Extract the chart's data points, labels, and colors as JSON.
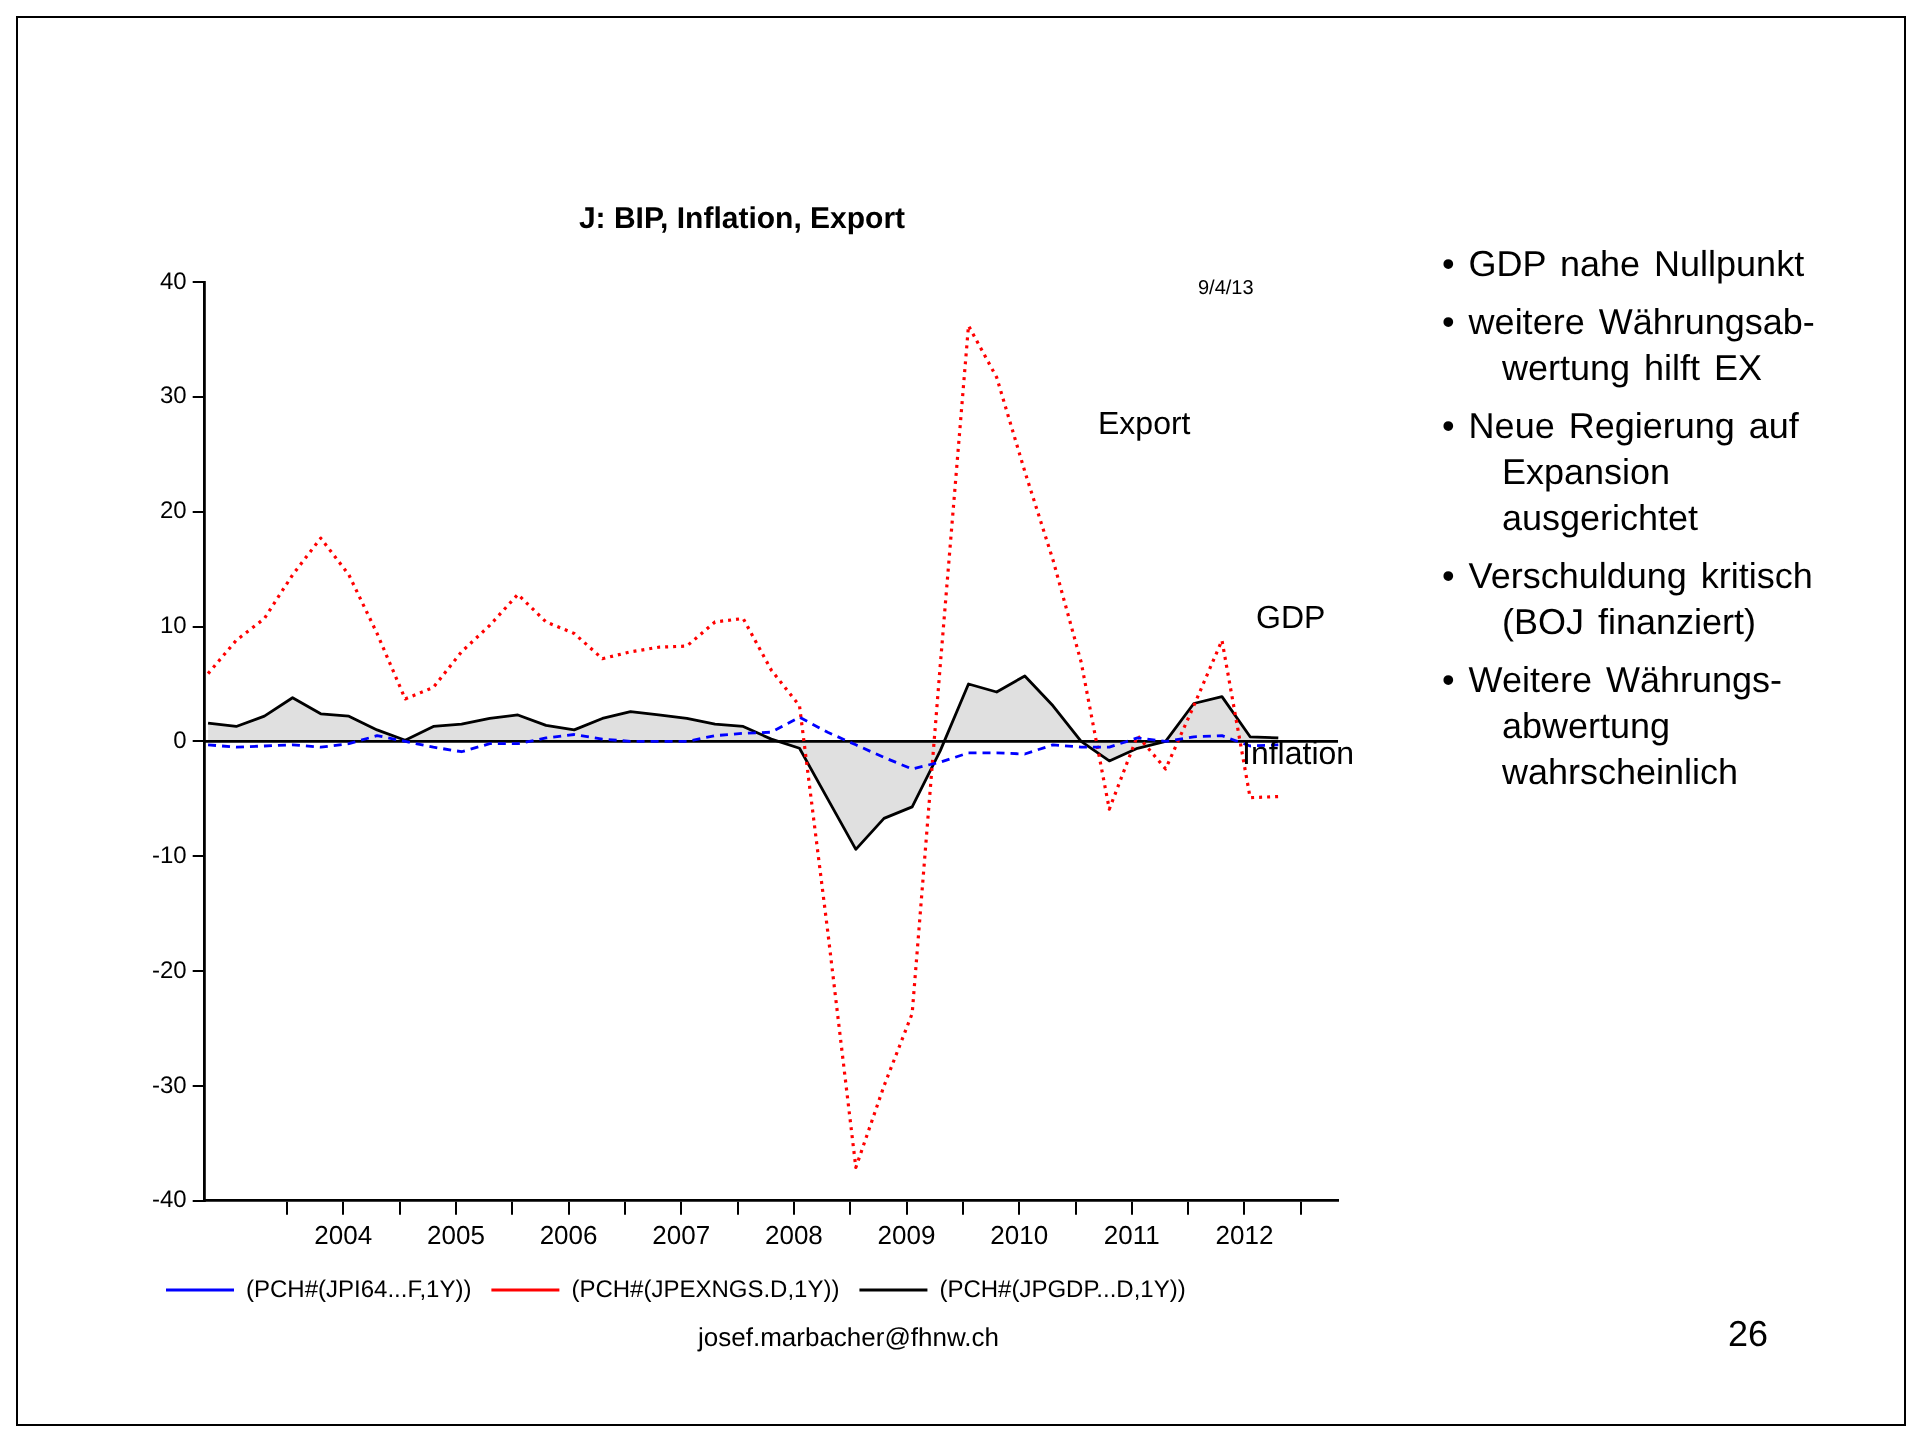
{
  "chart_data": {
    "type": "line",
    "title": "J: BIP, Inflation, Export",
    "x": [
      2003.3,
      2003.55,
      2003.8,
      2004.05,
      2004.3,
      2004.55,
      2004.8,
      2005.05,
      2005.3,
      2005.55,
      2005.8,
      2006.05,
      2006.3,
      2006.55,
      2006.8,
      2007.05,
      2007.3,
      2007.55,
      2007.8,
      2008.05,
      2008.3,
      2008.55,
      2008.8,
      2009.05,
      2009.3,
      2009.55,
      2009.8,
      2010.05,
      2010.3,
      2010.55,
      2010.8,
      2011.05,
      2011.3,
      2011.55,
      2011.8,
      2012.05,
      2012.3,
      2012.55,
      2012.8
    ],
    "series": [
      {
        "name": "(PCH#(JPGDP...D,1Y))",
        "type": "area",
        "color": "#000000",
        "line_style": "solid",
        "values": [
          1.6,
          1.3,
          2.2,
          3.8,
          2.4,
          2.2,
          1.0,
          0.1,
          1.3,
          1.5,
          2.0,
          2.3,
          1.4,
          1.0,
          2.0,
          2.6,
          2.3,
          2.0,
          1.5,
          1.3,
          0.2,
          -0.6,
          -5.0,
          -9.4,
          -6.7,
          -5.7,
          -0.8,
          5.0,
          4.3,
          5.7,
          3.1,
          0.0,
          -1.7,
          -0.6,
          0.0,
          3.3,
          3.9,
          0.4,
          0.3
        ]
      },
      {
        "name": "(PCH#(JPI64...F,1Y))",
        "color": "#0000ff",
        "line_style": "dashed",
        "values": [
          -0.3,
          -0.5,
          -0.4,
          -0.3,
          -0.5,
          -0.2,
          0.5,
          0.0,
          -0.5,
          -0.9,
          -0.2,
          -0.2,
          0.3,
          0.6,
          0.2,
          0.0,
          0.0,
          0.0,
          0.5,
          0.7,
          0.8,
          2.1,
          0.8,
          -0.3,
          -1.4,
          -2.4,
          -1.8,
          -1.0,
          -1.0,
          -1.1,
          -0.3,
          -0.5,
          -0.5,
          0.3,
          0.0,
          0.4,
          0.5,
          -0.4,
          -0.3
        ]
      },
      {
        "name": "(PCH#(JPEXNGS.D,1Y))",
        "color": "#ff0000",
        "line_style": "dotted",
        "values": [
          5.9,
          8.8,
          10.7,
          14.5,
          17.7,
          14.5,
          9.4,
          3.7,
          4.7,
          7.8,
          10.1,
          12.8,
          10.4,
          9.4,
          7.2,
          7.8,
          8.2,
          8.3,
          10.4,
          10.7,
          6.2,
          3.1,
          -16.5,
          -37.1,
          -30.0,
          -23.7,
          6.7,
          36.2,
          31.7,
          23.5,
          15.8,
          6.9,
          -5.9,
          0.5,
          -2.4,
          3.1,
          8.8,
          -4.9,
          -4.8
        ]
      }
    ],
    "xlim": [
      2003.27,
      2013.33
    ],
    "xticks": [
      {
        "value": 2004,
        "label": null
      },
      {
        "value": 2004.5,
        "label": "2004"
      },
      {
        "value": 2005,
        "label": null
      },
      {
        "value": 2005.5,
        "label": "2005"
      },
      {
        "value": 2006,
        "label": null
      },
      {
        "value": 2006.5,
        "label": "2006"
      },
      {
        "value": 2007,
        "label": null
      },
      {
        "value": 2007.5,
        "label": "2007"
      },
      {
        "value": 2008,
        "label": null
      },
      {
        "value": 2008.5,
        "label": "2008"
      },
      {
        "value": 2009,
        "label": null
      },
      {
        "value": 2009.5,
        "label": "2009"
      },
      {
        "value": 2010,
        "label": null
      },
      {
        "value": 2010.5,
        "label": "2010"
      },
      {
        "value": 2011,
        "label": null
      },
      {
        "value": 2011.5,
        "label": "2011"
      },
      {
        "value": 2012,
        "label": null
      },
      {
        "value": 2012.5,
        "label": "2012"
      },
      {
        "value": 2013,
        "label": null
      }
    ],
    "ylim": [
      -40,
      40
    ],
    "yticks": [
      -40,
      -30,
      -20,
      -10,
      0,
      10,
      20,
      30,
      40
    ],
    "ref_lines": [
      {
        "axis": "y",
        "value": 0,
        "color": "#000000"
      }
    ],
    "grid": false,
    "legend": "bottom left",
    "marker": "none",
    "annotations": [
      "9/4/13",
      "Export",
      "GDP",
      "Inflation",
      "• GDP nahe Nullpunkt",
      "• weitere Währungsab-wertung hilft EX",
      "• Neue Regierung auf Expansion ausgerichtet",
      "• Verschuldung kritisch (BOJ finanziert)",
      "• Weitere Währungs-abwertung wahrscheinlich",
      "josef.marbacher@fhnw.ch",
      "26"
    ]
  }
}
